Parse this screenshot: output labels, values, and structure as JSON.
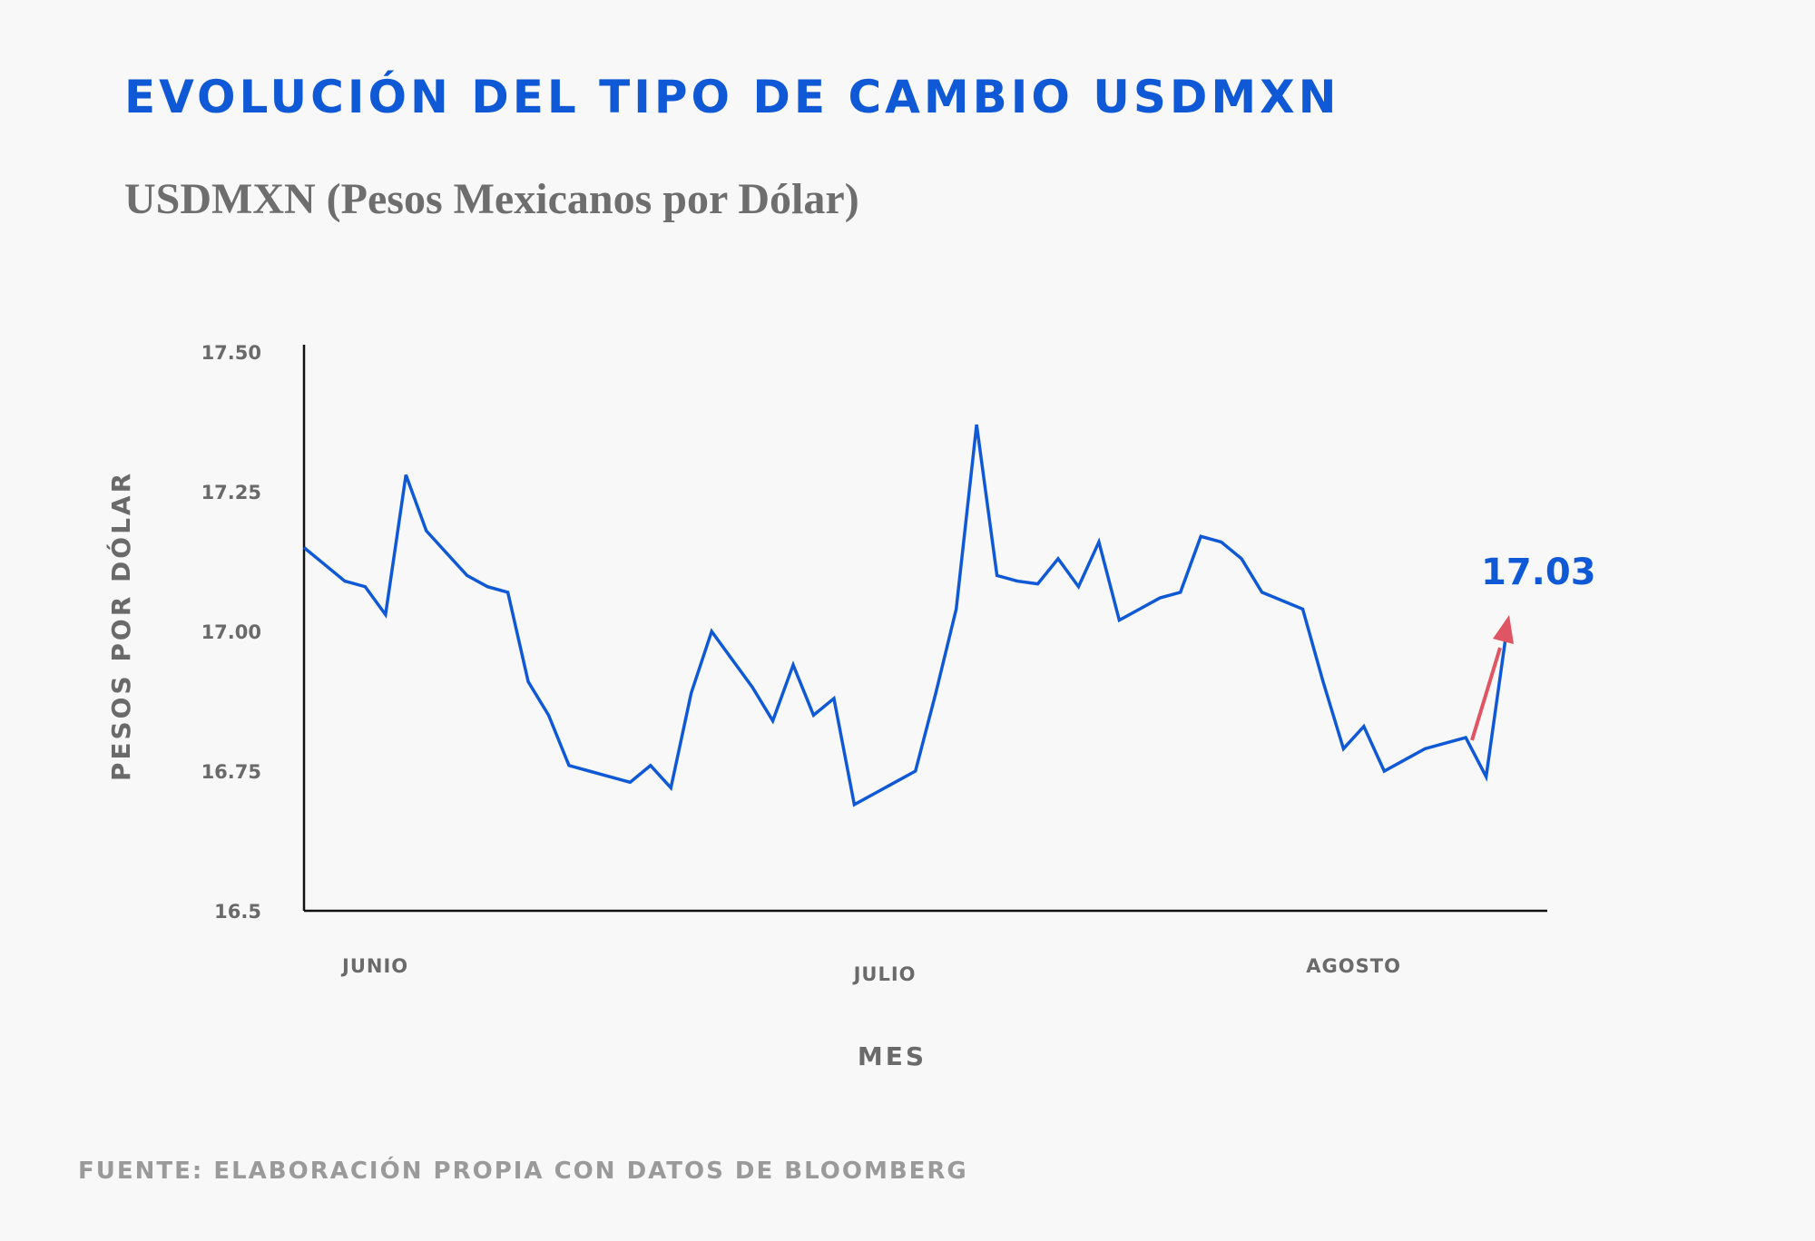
{
  "header": {
    "title": "EVOLUCIÓN DEL TIPO DE CAMBIO USDMXN",
    "subtitle": "USDMXN (Pesos Mexicanos por Dólar)"
  },
  "footer": {
    "source": "FUENTE: ELABORACIÓN PROPIA CON DATOS DE BLOOMBERG"
  },
  "colors": {
    "line": "#1059d6",
    "arrow": "#e05563",
    "axis": "#111111",
    "title": "#1059d6"
  },
  "chart_data": {
    "type": "line",
    "title": "USDMXN (Pesos Mexicanos por Dólar)",
    "xlabel": "MES",
    "ylabel": "PESOS POR DÓLAR",
    "ylim": [
      16.5,
      17.5
    ],
    "yticks": [
      {
        "value": 17.5,
        "label": "17.50"
      },
      {
        "value": 17.25,
        "label": "17.25"
      },
      {
        "value": 17.0,
        "label": "17.00"
      },
      {
        "value": 16.75,
        "label": "16.75"
      },
      {
        "value": 16.5,
        "label": "16.5"
      }
    ],
    "xlim": [
      0,
      61
    ],
    "xticks": [
      {
        "index": 3.5,
        "label": "JUNIO"
      },
      {
        "index": 28.5,
        "label": "JULIO"
      },
      {
        "index": 51.5,
        "label": "AGOSTO"
      }
    ],
    "series": [
      {
        "name": "USDMXN",
        "values": [
          17.15,
          17.12,
          17.09,
          17.08,
          17.03,
          17.28,
          17.18,
          17.14,
          17.1,
          17.08,
          17.07,
          16.91,
          16.85,
          16.76,
          16.75,
          16.74,
          16.73,
          16.76,
          16.72,
          16.89,
          17.0,
          16.95,
          16.9,
          16.84,
          16.94,
          16.85,
          16.88,
          16.69,
          16.71,
          16.73,
          16.75,
          16.89,
          17.04,
          17.37,
          17.1,
          17.09,
          17.085,
          17.13,
          17.08,
          17.16,
          17.02,
          17.04,
          17.06,
          17.07,
          17.17,
          17.16,
          17.13,
          17.07,
          17.055,
          17.04,
          16.91,
          16.79,
          16.83,
          16.75,
          16.77,
          16.79,
          16.8,
          16.81,
          16.74,
          17.0
        ]
      }
    ],
    "annotation": {
      "label": "17.03",
      "direction": "up"
    }
  }
}
